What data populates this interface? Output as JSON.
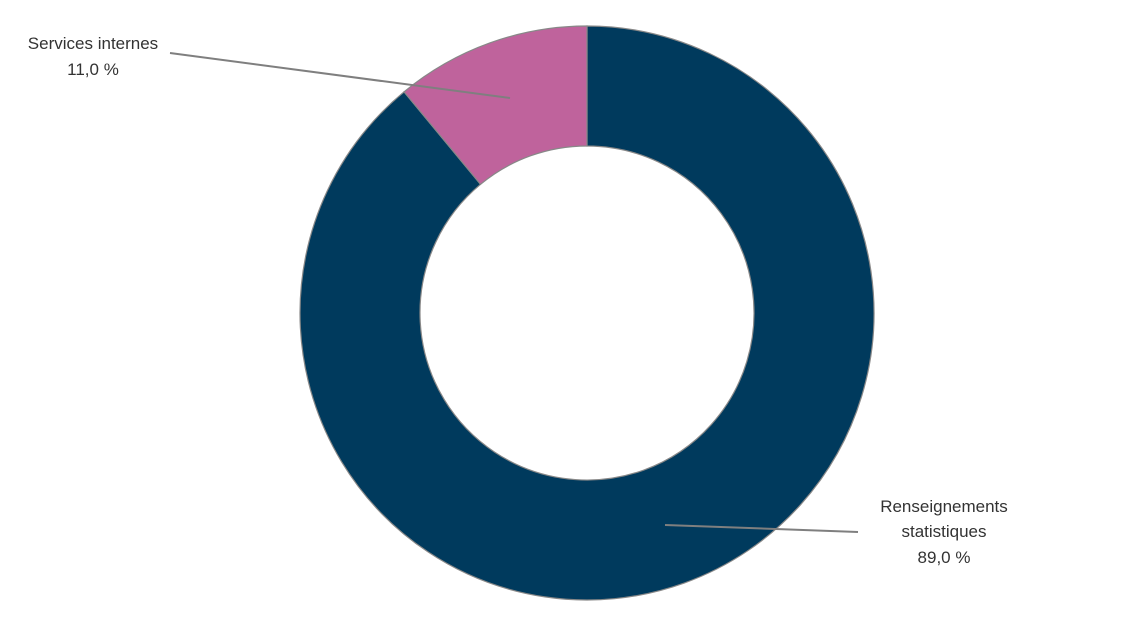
{
  "chart_data": {
    "type": "donut",
    "categories": [
      "Renseignements statistiques",
      "Services internes"
    ],
    "values": [
      89.0,
      11.0
    ],
    "value_labels": [
      "89,0 %",
      "11,0 %"
    ],
    "colors": [
      "#003a5d",
      "#bf639c"
    ]
  }
}
